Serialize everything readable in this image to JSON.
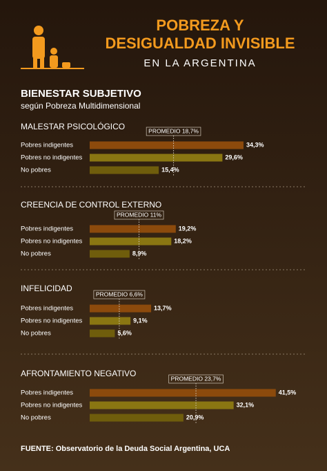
{
  "header": {
    "title_line1": "POBREZA Y",
    "title_line2": "DESIGUALDAD INVISIBLE",
    "subtitle": "EN LA ARGENTINA"
  },
  "section": {
    "title": "BIENESTAR SUBJETIVO",
    "subtitle": "según Pobreza Multidimensional"
  },
  "chart_data": [
    {
      "type": "bar",
      "title": "MALESTAR PSICOLÓGICO",
      "categories": [
        "Pobres indigentes",
        "Pobres no indigentes",
        "No pobres"
      ],
      "values": [
        34.3,
        29.6,
        15.4
      ],
      "value_labels": [
        "34,3%",
        "29,6%",
        "15,4%"
      ],
      "colors": [
        "#8c4a0c",
        "#8a7612",
        "#6f5d0c"
      ],
      "average": 18.7,
      "average_label": "PROMEDIO 18,7%"
    },
    {
      "type": "bar",
      "title": "CREENCIA DE CONTROL EXTERNO",
      "categories": [
        "Pobres indigentes",
        "Pobres no indigentes",
        "No pobres"
      ],
      "values": [
        19.2,
        18.2,
        8.9
      ],
      "value_labels": [
        "19,2%",
        "18,2%",
        "8,9%"
      ],
      "colors": [
        "#8c4a0c",
        "#8a7612",
        "#6f5d0c"
      ],
      "average": 11,
      "average_label": "PROMEDIO 11%"
    },
    {
      "type": "bar",
      "title": "INFELICIDAD",
      "categories": [
        "Pobres indigentes",
        "Pobres no indigentes",
        "No pobres"
      ],
      "values": [
        13.7,
        9.1,
        5.6
      ],
      "value_labels": [
        "13,7%",
        "9,1%",
        "5,6%"
      ],
      "colors": [
        "#8c4a0c",
        "#8a7612",
        "#6f5d0c"
      ],
      "average": 6.6,
      "average_label": "PROMEDIO 6,6%"
    },
    {
      "type": "bar",
      "title": "AFRONTAMIENTO NEGATIVO",
      "categories": [
        "Pobres indigentes",
        "Pobres no indigentes",
        "No pobres"
      ],
      "values": [
        41.5,
        32.1,
        20.9
      ],
      "value_labels": [
        "41,5%",
        "32,1%",
        "20,9%"
      ],
      "colors": [
        "#8c4a0c",
        "#8a7612",
        "#6f5d0c"
      ],
      "average": 23.7,
      "average_label": "PROMEDIO 23,7%"
    }
  ],
  "source": "FUENTE: Observatorio de la Deuda Social Argentina, UCA"
}
